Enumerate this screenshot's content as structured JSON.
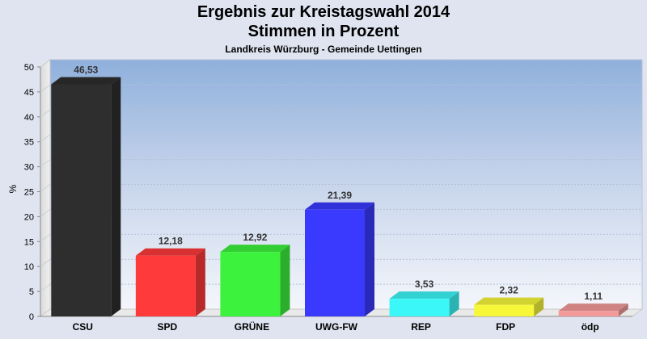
{
  "chart_data": {
    "type": "bar",
    "title": "Ergebnis zur Kreistagswahl 2014",
    "subtitle": "Stimmen in Prozent",
    "subtitle2": "Landkreis Würzburg - Gemeinde Uettingen",
    "ylabel": "%",
    "ylim": [
      0,
      50
    ],
    "yticks": [
      0,
      5,
      10,
      15,
      20,
      25,
      30,
      35,
      40,
      45,
      50
    ],
    "categories": [
      "CSU",
      "SPD",
      "GRÜNE",
      "UWG-FW",
      "REP",
      "FDP",
      "ödp"
    ],
    "values": [
      46.53,
      12.18,
      12.92,
      21.39,
      3.53,
      2.32,
      1.11
    ],
    "value_labels": [
      "46,53",
      "12,18",
      "12,92",
      "21,39",
      "3,53",
      "2,32",
      "1,11"
    ],
    "colors": [
      "#2e2e2e",
      "#ff3a3a",
      "#3cf23c",
      "#3a3aff",
      "#3cf7f7",
      "#f7f73a",
      "#f39a9a"
    ],
    "grid": true
  }
}
